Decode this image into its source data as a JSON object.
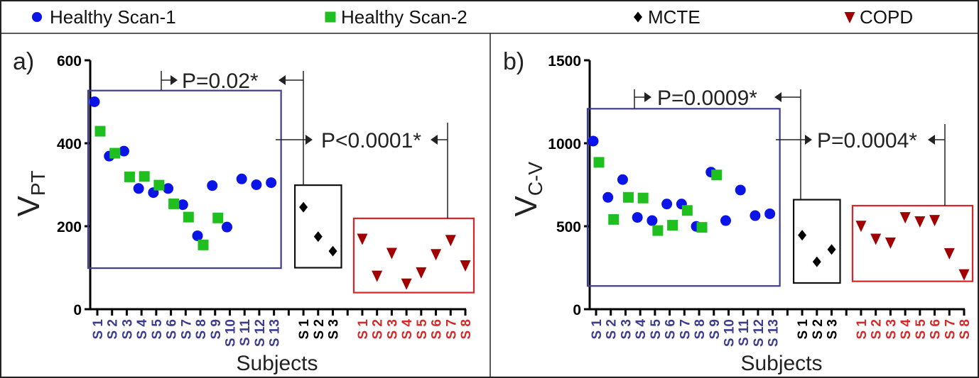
{
  "legend": [
    {
      "label": "Healthy Scan-1",
      "marker": "circle",
      "color": "#0a14e6"
    },
    {
      "label": "Healthy Scan-2",
      "marker": "square",
      "color": "#1fbf1f"
    },
    {
      "label": "MCTE",
      "marker": "diamond",
      "color": "#000000"
    },
    {
      "label": "COPD",
      "marker": "triangle-down",
      "color": "#a00000"
    }
  ],
  "group_colors": {
    "healthy": "#3d3d8f",
    "mcte": "#000000",
    "copd": "#d42a2a"
  },
  "chart_data": [
    {
      "type": "scatter",
      "panel_label": "a)",
      "ylabel": "V",
      "ylabel_sub": "PT",
      "xlabel": "Subjects",
      "ylim": [
        0,
        600
      ],
      "yticks": [
        "0",
        "200",
        "400",
        "600"
      ],
      "groups": [
        {
          "name": "Healthy",
          "ticks": [
            "S 1",
            "S 2",
            "S 3",
            "S 4",
            "S 5",
            "S 6",
            "S 7",
            "S 8",
            "S 9",
            "S 10",
            "S 11",
            "S 12",
            "S 13"
          ],
          "box_ylim": [
            99,
            527
          ],
          "series": [
            {
              "name": "Healthy Scan-1",
              "values": [
                500,
                369,
                381,
                291,
                281,
                291,
                252,
                177,
                298,
                198,
                314,
                300,
                305
              ]
            },
            {
              "name": "Healthy Scan-2",
              "values": [
                429,
                376,
                319,
                320,
                299,
                254,
                222,
                155,
                220
              ]
            }
          ]
        },
        {
          "name": "MCTE",
          "ticks": [
            "S 1",
            "S 2",
            "S 3"
          ],
          "box_ylim": [
            100,
            299
          ],
          "series": [
            {
              "name": "MCTE",
              "values": [
                246,
                175,
                140
              ]
            }
          ]
        },
        {
          "name": "COPD",
          "ticks": [
            "S 1",
            "S 2",
            "S 3",
            "S 4",
            "S 5",
            "S 6",
            "S 7",
            "S 8"
          ],
          "box_ylim": [
            40,
            219
          ],
          "series": [
            {
              "name": "COPD",
              "values": [
                170,
                81,
                136,
                62,
                89,
                133,
                167,
                106
              ]
            }
          ]
        }
      ],
      "annotations": [
        {
          "text": "P=0.02*",
          "between": [
            "Healthy",
            "MCTE"
          ]
        },
        {
          "text": "P<0.0001*",
          "between": [
            "Healthy",
            "COPD"
          ]
        }
      ]
    },
    {
      "type": "scatter",
      "panel_label": "b)",
      "ylabel": "V",
      "ylabel_sub": "C-V",
      "xlabel": "Subjects",
      "ylim": [
        0,
        1500
      ],
      "yticks": [
        "0",
        "500",
        "1000",
        "1500"
      ],
      "groups": [
        {
          "name": "Healthy",
          "ticks": [
            "S 1",
            "S 2",
            "S 3",
            "S 4",
            "S 5",
            "S 6",
            "S 7",
            "S 8",
            "S 9",
            "S 10",
            "S 11",
            "S 12",
            "S 13"
          ],
          "box_ylim": [
            140,
            1208
          ],
          "series": [
            {
              "name": "Healthy Scan-1",
              "values": [
                1013,
                674,
                781,
                553,
                534,
                634,
                634,
                499,
                826,
                534,
                718,
                564,
                575
              ]
            },
            {
              "name": "Healthy Scan-2",
              "values": [
                885,
                541,
                674,
                670,
                474,
                506,
                595,
                493,
                809
              ]
            }
          ]
        },
        {
          "name": "MCTE",
          "ticks": [
            "S 1",
            "S 2",
            "S 3"
          ],
          "box_ylim": [
            158,
            660
          ],
          "series": [
            {
              "name": "MCTE",
              "values": [
                446,
                286,
                360
              ]
            }
          ]
        },
        {
          "name": "COPD",
          "ticks": [
            "S 1",
            "S 2",
            "S 3",
            "S 4",
            "S 5",
            "S 6",
            "S 7",
            "S 8"
          ],
          "box_ylim": [
            168,
            624
          ],
          "series": [
            {
              "name": "COPD",
              "values": [
                503,
                425,
                402,
                555,
                530,
                538,
                338,
                211
              ]
            }
          ]
        }
      ],
      "annotations": [
        {
          "text": "P=0.0009*",
          "between": [
            "Healthy",
            "MCTE"
          ]
        },
        {
          "text": "P=0.0004*",
          "between": [
            "Healthy",
            "COPD"
          ]
        }
      ]
    }
  ]
}
